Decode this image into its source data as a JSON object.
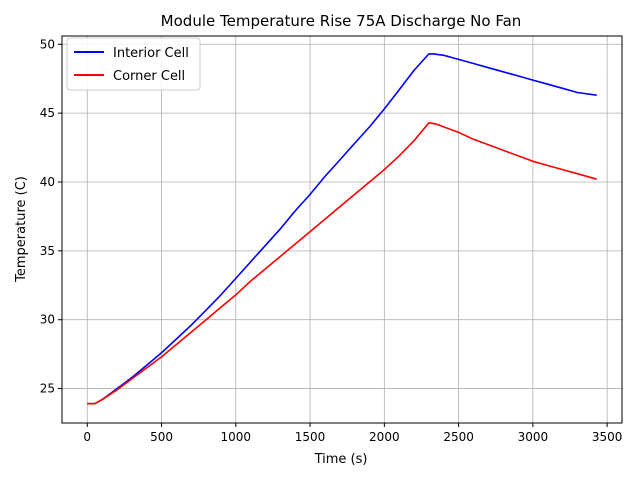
{
  "chart_data": {
    "type": "line",
    "title": "Module Temperature Rise 75A Discharge No Fan",
    "xlabel": "Time (s)",
    "ylabel": "Temperature (C)",
    "xlim": [
      -170,
      3600
    ],
    "ylim": [
      22.5,
      50.6
    ],
    "xticks": [
      0,
      500,
      1000,
      1500,
      2000,
      2500,
      3000,
      3500
    ],
    "yticks": [
      25,
      30,
      35,
      40,
      45,
      50
    ],
    "grid": true,
    "legend_position": "upper-left",
    "series": [
      {
        "name": "Interior Cell",
        "color": "#0000ff",
        "points": [
          [
            0,
            23.9
          ],
          [
            50,
            23.9
          ],
          [
            100,
            24.2
          ],
          [
            200,
            25.0
          ],
          [
            300,
            25.8
          ],
          [
            400,
            26.7
          ],
          [
            500,
            27.6
          ],
          [
            600,
            28.6
          ],
          [
            700,
            29.6
          ],
          [
            800,
            30.7
          ],
          [
            900,
            31.8
          ],
          [
            1000,
            33.0
          ],
          [
            1100,
            34.2
          ],
          [
            1200,
            35.4
          ],
          [
            1300,
            36.6
          ],
          [
            1400,
            37.9
          ],
          [
            1500,
            39.1
          ],
          [
            1600,
            40.4
          ],
          [
            1700,
            41.6
          ],
          [
            1800,
            42.8
          ],
          [
            1900,
            44.0
          ],
          [
            2000,
            45.3
          ],
          [
            2100,
            46.7
          ],
          [
            2200,
            48.1
          ],
          [
            2300,
            49.3
          ],
          [
            2330,
            49.3
          ],
          [
            2400,
            49.2
          ],
          [
            2500,
            48.9
          ],
          [
            2600,
            48.6
          ],
          [
            2700,
            48.3
          ],
          [
            2800,
            48.0
          ],
          [
            2900,
            47.7
          ],
          [
            3000,
            47.4
          ],
          [
            3100,
            47.1
          ],
          [
            3200,
            46.8
          ],
          [
            3300,
            46.5
          ],
          [
            3430,
            46.3
          ]
        ]
      },
      {
        "name": "Corner Cell",
        "color": "#ff0000",
        "points": [
          [
            0,
            23.9
          ],
          [
            50,
            23.9
          ],
          [
            100,
            24.2
          ],
          [
            200,
            24.9
          ],
          [
            300,
            25.7
          ],
          [
            400,
            26.5
          ],
          [
            500,
            27.3
          ],
          [
            600,
            28.2
          ],
          [
            700,
            29.1
          ],
          [
            800,
            30.0
          ],
          [
            900,
            30.9
          ],
          [
            1000,
            31.8
          ],
          [
            1100,
            32.8
          ],
          [
            1200,
            33.7
          ],
          [
            1300,
            34.6
          ],
          [
            1400,
            35.5
          ],
          [
            1500,
            36.4
          ],
          [
            1600,
            37.3
          ],
          [
            1700,
            38.2
          ],
          [
            1800,
            39.1
          ],
          [
            1900,
            40.0
          ],
          [
            2000,
            40.9
          ],
          [
            2100,
            41.9
          ],
          [
            2200,
            43.0
          ],
          [
            2300,
            44.3
          ],
          [
            2350,
            44.2
          ],
          [
            2400,
            44.0
          ],
          [
            2500,
            43.6
          ],
          [
            2600,
            43.1
          ],
          [
            2700,
            42.7
          ],
          [
            2800,
            42.3
          ],
          [
            2900,
            41.9
          ],
          [
            3000,
            41.5
          ],
          [
            3100,
            41.2
          ],
          [
            3200,
            40.9
          ],
          [
            3300,
            40.6
          ],
          [
            3430,
            40.2
          ]
        ]
      }
    ]
  }
}
